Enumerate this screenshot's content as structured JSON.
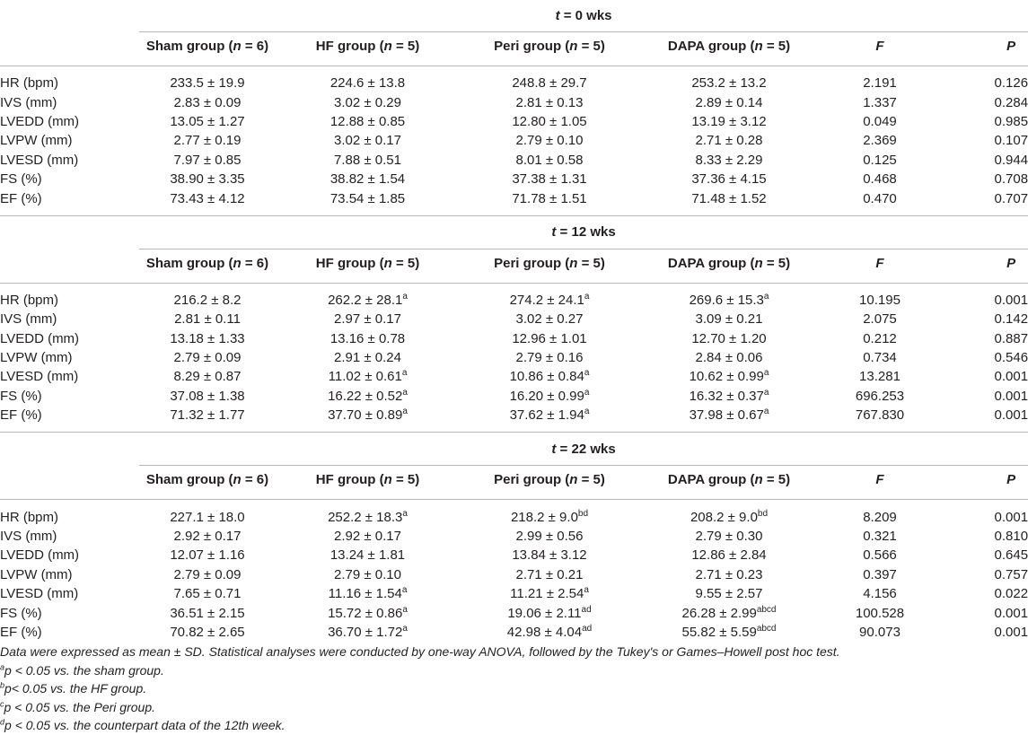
{
  "blocks": [
    {
      "section_title": "t = 0 wks",
      "columns": [
        "",
        "Sham group (n = 6)",
        "HF group (n = 5)",
        "Peri group (n = 5)",
        "DAPA group (n = 5)",
        "F",
        "P"
      ],
      "rows": [
        {
          "label": "HR (bpm)",
          "sham": "233.5 ± 19.9",
          "sham_sup": "",
          "hf": "224.6 ± 13.8",
          "hf_sup": "",
          "peri": "248.8 ± 29.7",
          "peri_sup": "",
          "dapa": "253.2 ± 13.2",
          "dapa_sup": "",
          "f": "2.191",
          "p": "0.126"
        },
        {
          "label": "IVS (mm)",
          "sham": "2.83 ± 0.09",
          "sham_sup": "",
          "hf": "3.02 ± 0.29",
          "hf_sup": "",
          "peri": "2.81 ± 0.13",
          "peri_sup": "",
          "dapa": "2.89 ± 0.14",
          "dapa_sup": "",
          "f": "1.337",
          "p": "0.284"
        },
        {
          "label": "LVEDD (mm)",
          "sham": "13.05 ± 1.27",
          "sham_sup": "",
          "hf": "12.88 ± 0.85",
          "hf_sup": "",
          "peri": "12.80 ± 1.05",
          "peri_sup": "",
          "dapa": "13.19 ± 3.12",
          "dapa_sup": "",
          "f": "0.049",
          "p": "0.985"
        },
        {
          "label": "LVPW (mm)",
          "sham": "2.77 ± 0.19",
          "sham_sup": "",
          "hf": "3.02 ± 0.17",
          "hf_sup": "",
          "peri": "2.79 ± 0.10",
          "peri_sup": "",
          "dapa": "2.71 ± 0.28",
          "dapa_sup": "",
          "f": "2.369",
          "p": "0.107"
        },
        {
          "label": "LVESD (mm)",
          "sham": "7.97 ± 0.85",
          "sham_sup": "",
          "hf": "7.88 ± 0.51",
          "hf_sup": "",
          "peri": "8.01 ± 0.58",
          "peri_sup": "",
          "dapa": "8.33 ± 2.29",
          "dapa_sup": "",
          "f": "0.125",
          "p": "0.944"
        },
        {
          "label": "FS (%)",
          "sham": "38.90 ± 3.35",
          "sham_sup": "",
          "hf": "38.82 ± 1.54",
          "hf_sup": "",
          "peri": "37.38 ± 1.31",
          "peri_sup": "",
          "dapa": "37.36 ± 4.15",
          "dapa_sup": "",
          "f": "0.468",
          "p": "0.708"
        },
        {
          "label": "EF (%)",
          "sham": "73.43 ± 4.12",
          "sham_sup": "",
          "hf": "73.54 ± 1.85",
          "hf_sup": "",
          "peri": "71.78 ± 1.51",
          "peri_sup": "",
          "dapa": "71.48 ± 1.52",
          "dapa_sup": "",
          "f": "0.470",
          "p": "0.707"
        }
      ]
    },
    {
      "section_title": "t = 12 wks",
      "columns": [
        "",
        "Sham group (n = 6)",
        "HF group (n = 5)",
        "Peri group (n = 5)",
        "DAPA group (n = 5)",
        "F",
        "P"
      ],
      "rows": [
        {
          "label": "HR (bpm)",
          "sham": "216.2 ± 8.2",
          "sham_sup": "",
          "hf": "262.2 ± 28.1",
          "hf_sup": "a",
          "peri": "274.2 ± 24.1",
          "peri_sup": "a",
          "dapa": "269.6 ± 15.3",
          "dapa_sup": "a",
          "f": "10.195",
          "p": "0.001"
        },
        {
          "label": "IVS (mm)",
          "sham": "2.81 ± 0.11",
          "sham_sup": "",
          "hf": "2.97 ± 0.17",
          "hf_sup": "",
          "peri": "3.02 ± 0.27",
          "peri_sup": "",
          "dapa": "3.09 ± 0.21",
          "dapa_sup": "",
          "f": "2.075",
          "p": "0.142"
        },
        {
          "label": "LVEDD (mm)",
          "sham": "13.18 ± 1.33",
          "sham_sup": "",
          "hf": "13.16 ± 0.78",
          "hf_sup": "",
          "peri": "12.96 ± 1.01",
          "peri_sup": "",
          "dapa": "12.70 ± 1.20",
          "dapa_sup": "",
          "f": "0.212",
          "p": "0.887"
        },
        {
          "label": "LVPW (mm)",
          "sham": "2.79 ± 0.09",
          "sham_sup": "",
          "hf": "2.91 ± 0.24",
          "hf_sup": "",
          "peri": "2.79 ± 0.16",
          "peri_sup": "",
          "dapa": "2.84 ± 0.06",
          "dapa_sup": "",
          "f": "0.734",
          "p": "0.546"
        },
        {
          "label": "LVESD (mm)",
          "sham": "8.29 ± 0.87",
          "sham_sup": "",
          "hf": "11.02 ± 0.61",
          "hf_sup": "a",
          "peri": "10.86 ± 0.84",
          "peri_sup": "a",
          "dapa": "10.62 ± 0.99",
          "dapa_sup": "a",
          "f": "13.281",
          "p": "0.001"
        },
        {
          "label": "FS (%)",
          "sham": "37.08 ± 1.38",
          "sham_sup": "",
          "hf": "16.22 ± 0.52",
          "hf_sup": "a",
          "peri": "16.20 ± 0.99",
          "peri_sup": "a",
          "dapa": "16.32 ± 0.37",
          "dapa_sup": "a",
          "f": "696.253",
          "p": "0.001"
        },
        {
          "label": "EF (%)",
          "sham": "71.32 ± 1.77",
          "sham_sup": "",
          "hf": "37.70 ± 0.89",
          "hf_sup": "a",
          "peri": "37.62 ± 1.94",
          "peri_sup": "a",
          "dapa": "37.98 ± 0.67",
          "dapa_sup": "a",
          "f": "767.830",
          "p": "0.001"
        }
      ]
    },
    {
      "section_title": "t = 22 wks",
      "columns": [
        "",
        "Sham group (n = 6)",
        "HF group (n = 5)",
        "Peri group (n = 5)",
        "DAPA group (n = 5)",
        "F",
        "P"
      ],
      "rows": [
        {
          "label": "HR (bpm)",
          "sham": "227.1 ± 18.0",
          "sham_sup": "",
          "hf": "252.2 ± 18.3",
          "hf_sup": "a",
          "peri": "218.2 ± 9.0",
          "peri_sup": "bd",
          "dapa": "208.2 ± 9.0",
          "dapa_sup": "bd",
          "f": "8.209",
          "p": "0.001"
        },
        {
          "label": "IVS (mm)",
          "sham": "2.92 ± 0.17",
          "sham_sup": "",
          "hf": "2.92 ± 0.17",
          "hf_sup": "",
          "peri": "2.99 ± 0.56",
          "peri_sup": "",
          "dapa": "2.79 ± 0.30",
          "dapa_sup": "",
          "f": "0.321",
          "p": "0.810"
        },
        {
          "label": "LVEDD (mm)",
          "sham": "12.07 ± 1.16",
          "sham_sup": "",
          "hf": "13.24 ± 1.81",
          "hf_sup": "",
          "peri": "13.84 ± 3.12",
          "peri_sup": "",
          "dapa": "12.86 ± 2.84",
          "dapa_sup": "",
          "f": "0.566",
          "p": "0.645"
        },
        {
          "label": "LVPW (mm)",
          "sham": "2.79 ± 0.09",
          "sham_sup": "",
          "hf": "2.79 ± 0.10",
          "hf_sup": "",
          "peri": "2.71 ± 0.21",
          "peri_sup": "",
          "dapa": "2.71 ± 0.23",
          "dapa_sup": "",
          "f": "0.397",
          "p": "0.757"
        },
        {
          "label": "LVESD (mm)",
          "sham": "7.65 ± 0.71",
          "sham_sup": "",
          "hf": "11.16 ± 1.54",
          "hf_sup": "a",
          "peri": "11.21 ± 2.54",
          "peri_sup": "a",
          "dapa": "9.55 ± 2.57",
          "dapa_sup": "",
          "f": "4.156",
          "p": "0.022"
        },
        {
          "label": "FS (%)",
          "sham": "36.51 ± 2.15",
          "sham_sup": "",
          "hf": "15.72 ± 0.86",
          "hf_sup": "a",
          "peri": "19.06 ± 2.11",
          "peri_sup": "ad",
          "dapa": "26.28 ± 2.99",
          "dapa_sup": "abcd",
          "f": "100.528",
          "p": "0.001"
        },
        {
          "label": "EF (%)",
          "sham": "70.82 ± 2.65",
          "sham_sup": "",
          "hf": "36.70 ± 1.72",
          "hf_sup": "a",
          "peri": "42.98 ± 4.04",
          "peri_sup": "ad",
          "dapa": "55.82 ± 5.59",
          "dapa_sup": "abcd",
          "f": "90.073",
          "p": "0.001"
        }
      ]
    }
  ],
  "notes": [
    {
      "sup": "",
      "text": "Data were expressed as mean ± SD. Statistical analyses were conducted by one-way ANOVA, followed by the Tukey's or Games–Howell post hoc test."
    },
    {
      "sup": "a",
      "text": "p < 0.05 vs. the sham group."
    },
    {
      "sup": "b",
      "text": "p< 0.05 vs. the HF group."
    },
    {
      "sup": "c",
      "text": "p < 0.05 vs. the Peri group."
    },
    {
      "sup": "d",
      "text": "p < 0.05 vs. the counterpart data of the 12th week."
    }
  ]
}
